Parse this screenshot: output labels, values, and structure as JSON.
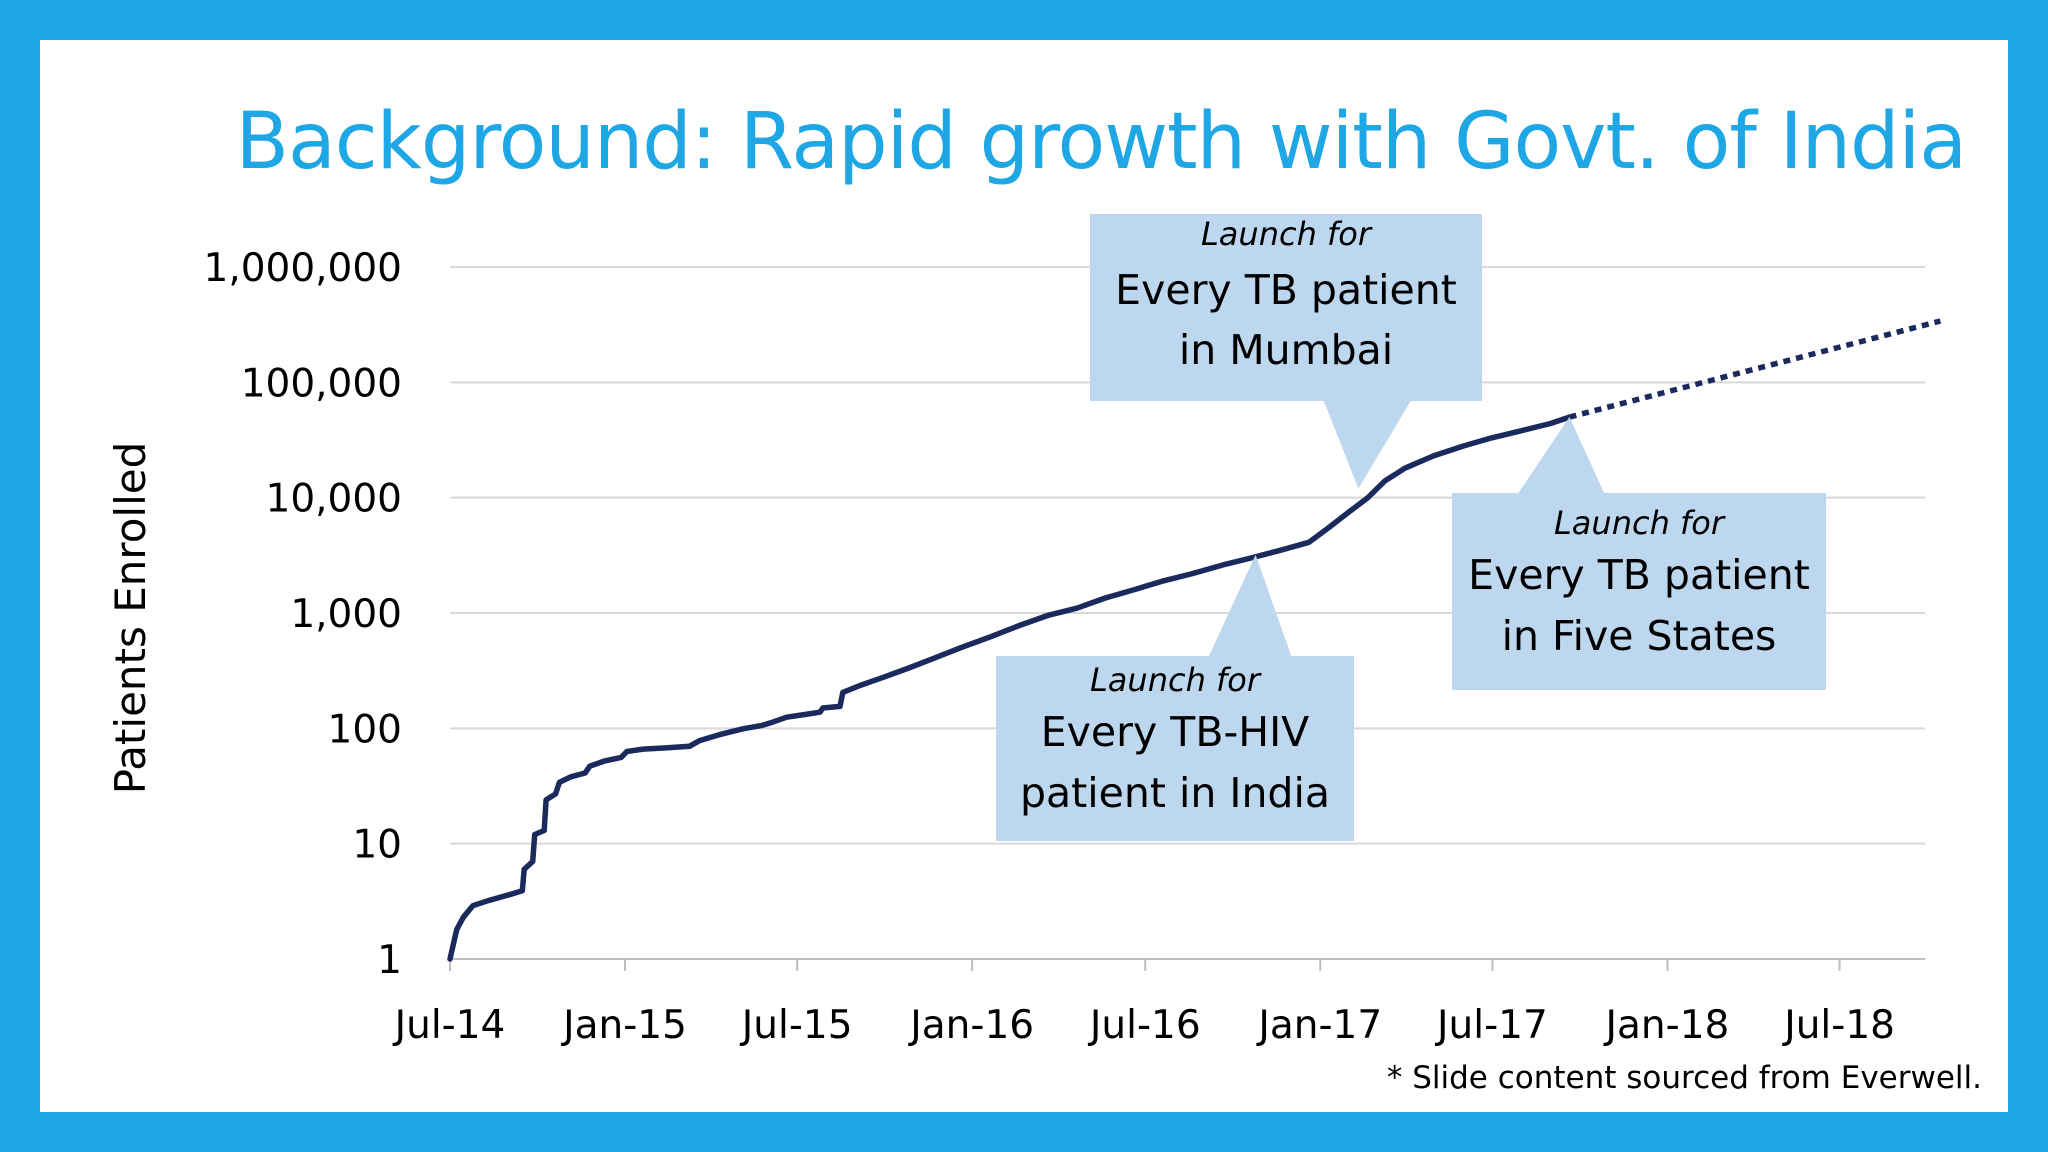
{
  "slide": {
    "title": "Background: Rapid growth with Govt. of India",
    "footnote": "* Slide content sourced from Everwell.",
    "accent_color": "#1ea7e4"
  },
  "chart_data": {
    "type": "line",
    "ylabel": "Patients Enrolled",
    "xlabel": "",
    "yscale": "log",
    "ylim": [
      1,
      1000000
    ],
    "xlim": [
      "2014-07",
      "2018-10"
    ],
    "y_ticks": [
      {
        "value": 1,
        "label": "1"
      },
      {
        "value": 10,
        "label": "10"
      },
      {
        "value": 100,
        "label": "100"
      },
      {
        "value": 1000,
        "label": "1,000"
      },
      {
        "value": 10000,
        "label": "10,000"
      },
      {
        "value": 100000,
        "label": "100,000"
      },
      {
        "value": 1000000,
        "label": "1,000,000"
      }
    ],
    "x_ticks": [
      {
        "value": "2014-07",
        "label": "Jul-14"
      },
      {
        "value": "2015-01",
        "label": "Jan-15"
      },
      {
        "value": "2015-07",
        "label": "Jul-15"
      },
      {
        "value": "2016-01",
        "label": "Jan-16"
      },
      {
        "value": "2016-07",
        "label": "Jul-16"
      },
      {
        "value": "2017-01",
        "label": "Jan-17"
      },
      {
        "value": "2017-07",
        "label": "Jul-17"
      },
      {
        "value": "2018-01",
        "label": "Jan-18"
      },
      {
        "value": "2018-07",
        "label": "Jul-18"
      }
    ],
    "grid": "horizontal",
    "line_color": "#1b2a5c",
    "series": [
      {
        "style": "solid",
        "points": [
          [
            "2014-07-01",
            1
          ],
          [
            "2014-07-08",
            1.8
          ],
          [
            "2014-07-15",
            2.3
          ],
          [
            "2014-07-25",
            2.9
          ],
          [
            "2014-08-10",
            3.2
          ],
          [
            "2014-09-01",
            3.6
          ],
          [
            "2014-09-15",
            3.9
          ],
          [
            "2014-09-17",
            6
          ],
          [
            "2014-09-26",
            7
          ],
          [
            "2014-09-28",
            12
          ],
          [
            "2014-10-08",
            13
          ],
          [
            "2014-10-10",
            24
          ],
          [
            "2014-10-20",
            27
          ],
          [
            "2014-10-24",
            34
          ],
          [
            "2014-11-05",
            38
          ],
          [
            "2014-11-20",
            41
          ],
          [
            "2014-11-25",
            47
          ],
          [
            "2014-12-10",
            52
          ],
          [
            "2014-12-28",
            56
          ],
          [
            "2015-01-03",
            63
          ],
          [
            "2015-01-20",
            66
          ],
          [
            "2015-02-15",
            68
          ],
          [
            "2015-03-10",
            70
          ],
          [
            "2015-03-20",
            78
          ],
          [
            "2015-04-10",
            88
          ],
          [
            "2015-05-05",
            99
          ],
          [
            "2015-05-25",
            106
          ],
          [
            "2015-06-05",
            113
          ],
          [
            "2015-06-20",
            125
          ],
          [
            "2015-07-10",
            132
          ],
          [
            "2015-07-25",
            138
          ],
          [
            "2015-07-28",
            150
          ],
          [
            "2015-08-15",
            155
          ],
          [
            "2015-08-18",
            205
          ],
          [
            "2015-09-05",
            235
          ],
          [
            "2015-10-01",
            280
          ],
          [
            "2015-10-25",
            330
          ],
          [
            "2015-11-20",
            400
          ],
          [
            "2015-12-20",
            500
          ],
          [
            "2016-01-20",
            620
          ],
          [
            "2016-02-20",
            780
          ],
          [
            "2016-03-20",
            950
          ],
          [
            "2016-04-20",
            1100
          ],
          [
            "2016-05-20",
            1350
          ],
          [
            "2016-06-20",
            1600
          ],
          [
            "2016-07-20",
            1900
          ],
          [
            "2016-08-20",
            2200
          ],
          [
            "2016-09-20",
            2600
          ],
          [
            "2016-10-20",
            3000
          ],
          [
            "2016-11-20",
            3500
          ],
          [
            "2016-12-20",
            4100
          ],
          [
            "2017-01-10",
            5500
          ],
          [
            "2017-01-31",
            7500
          ],
          [
            "2017-02-20",
            10000
          ],
          [
            "2017-03-10",
            14000
          ],
          [
            "2017-03-31",
            18000
          ],
          [
            "2017-04-30",
            23000
          ],
          [
            "2017-05-31",
            28000
          ],
          [
            "2017-06-30",
            33000
          ],
          [
            "2017-07-31",
            38000
          ],
          [
            "2017-08-31",
            44000
          ],
          [
            "2017-09-20",
            50000
          ]
        ]
      },
      {
        "style": "dotted",
        "points": [
          [
            "2017-09-20",
            50000
          ],
          [
            "2018-10-15",
            340000
          ]
        ]
      }
    ],
    "annotations": [
      {
        "name": "mumbai",
        "lines": [
          "Launch for",
          "Every TB patient",
          "in Mumbai"
        ],
        "pointer": [
          "2017-02-10",
          12000
        ]
      },
      {
        "name": "tb-hiv",
        "lines": [
          "Launch for",
          "Every TB-HIV",
          "patient in India"
        ],
        "pointer": [
          "2016-10-25",
          3200
        ]
      },
      {
        "name": "five-states",
        "lines": [
          "Launch for",
          "Every TB patient",
          "in Five States"
        ],
        "pointer": [
          "2017-09-20",
          50000
        ]
      }
    ]
  }
}
